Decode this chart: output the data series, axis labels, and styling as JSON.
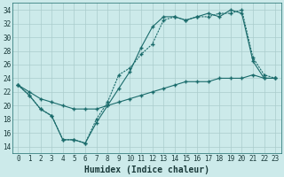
{
  "title": "",
  "xlabel": "Humidex (Indice chaleur)",
  "xlim": [
    -0.5,
    23.5
  ],
  "ylim": [
    13.0,
    35.0
  ],
  "yticks": [
    14,
    16,
    18,
    20,
    22,
    24,
    26,
    28,
    30,
    32,
    34
  ],
  "xticks": [
    0,
    1,
    2,
    3,
    4,
    5,
    6,
    7,
    8,
    9,
    10,
    11,
    12,
    13,
    14,
    15,
    16,
    17,
    18,
    19,
    20,
    21,
    22,
    23
  ],
  "background_color": "#cceaea",
  "grid_color": "#aacccc",
  "line_color": "#1a6b6b",
  "line1_x": [
    0,
    1,
    2,
    3,
    4,
    5,
    6,
    7,
    8,
    9,
    10,
    11,
    12,
    13,
    14,
    15,
    16,
    17,
    18,
    19,
    20,
    21,
    22,
    23
  ],
  "line1_y": [
    23,
    21.5,
    19.5,
    18.5,
    15,
    15,
    14.5,
    17.5,
    20,
    22.5,
    25,
    28.5,
    31.5,
    33,
    33,
    32.5,
    33,
    33.5,
    33,
    34,
    33.5,
    26.5,
    24,
    24
  ],
  "line2_x": [
    0,
    1,
    2,
    3,
    4,
    5,
    6,
    7,
    8,
    9,
    10,
    11,
    12,
    13,
    14,
    15,
    16,
    17,
    18,
    19,
    20,
    21,
    22,
    23
  ],
  "line2_y": [
    23,
    21.5,
    19.5,
    18.5,
    15,
    15,
    14.5,
    18,
    20.5,
    24.5,
    25.5,
    27.5,
    29,
    32.5,
    33,
    32.5,
    33,
    33,
    33.5,
    33.5,
    34,
    27,
    24.5,
    24
  ],
  "line3_x": [
    0,
    1,
    2,
    3,
    4,
    5,
    6,
    7,
    8,
    9,
    10,
    11,
    12,
    13,
    14,
    15,
    16,
    17,
    18,
    19,
    20,
    21,
    22,
    23
  ],
  "line3_y": [
    23,
    22,
    21,
    20.5,
    20,
    19.5,
    19.5,
    19.5,
    20,
    20.5,
    21,
    21.5,
    22,
    22.5,
    23,
    23.5,
    23.5,
    23.5,
    24,
    24,
    24,
    24.5,
    24,
    24
  ],
  "marker": "+",
  "markersize": 3.5,
  "linewidth": 0.8,
  "font_color": "#1a3a3a",
  "xlabel_fontsize": 7,
  "tick_fontsize": 5.5
}
